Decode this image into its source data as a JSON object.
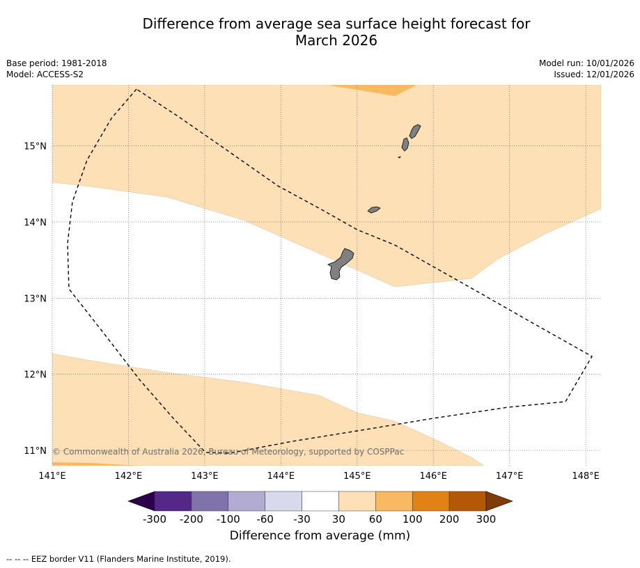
{
  "title": {
    "line1": "Difference from average sea surface height forecast for",
    "line2": "March 2026"
  },
  "meta": {
    "base_period": "Base period: 1981-2018",
    "model": "Model: ACCESS-S2",
    "model_run": "Model run: 10/01/2026",
    "issued": "Issued: 12/01/2026"
  },
  "map": {
    "lat_range": [
      10.8,
      15.8
    ],
    "lon_range": [
      141.0,
      148.2
    ],
    "lat_labels": [
      "11°N",
      "12°N",
      "13°N",
      "14°N",
      "15°N"
    ],
    "lon_labels": [
      "141°E",
      "142°E",
      "143°E",
      "144°E",
      "145°E",
      "146°E",
      "147°E",
      "148°E"
    ],
    "copyright": "© Commonwealth of Australia 2026, Bureau of Meteorology, supported by COSPPac"
  },
  "colorbar": {
    "tick_labels": [
      "-300",
      "-200",
      "-100",
      "-60",
      "-30",
      "30",
      "60",
      "100",
      "200",
      "300"
    ],
    "label": "Difference from average (mm)",
    "colors": {
      "under": "#2d004b",
      "bins": [
        "#542788",
        "#8073ac",
        "#b2abd2",
        "#d8daeb",
        "#ffffff",
        "#fde0b6",
        "#f9b862",
        "#e08214",
        "#b35806"
      ],
      "over": "#7f3b08"
    }
  },
  "colors": {
    "fill_30_60": "#fde0b6",
    "fill_60_100": "#f9b862",
    "land": "#808080",
    "grid": "#555555"
  },
  "footer": "--  --  -- EEZ border V11 (Flanders Marine Institute, 2019)."
}
